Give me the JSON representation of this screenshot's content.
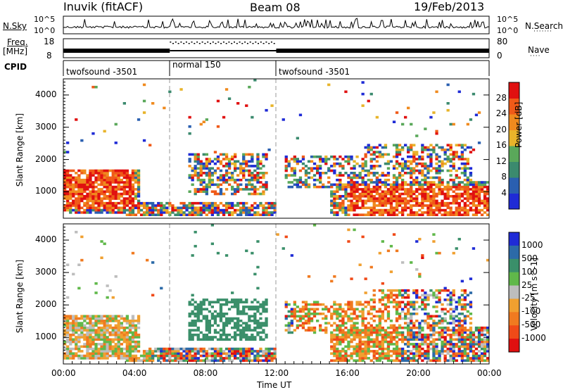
{
  "header": {
    "station": "Inuvik (fitACF)",
    "beam": "Beam 08",
    "date": "19/Feb/2013"
  },
  "strip": {
    "nsky_label": "N.Sky",
    "nsky_top": "10^5",
    "nsky_bottom": "10^0",
    "nsearch_label": "N.Search",
    "nsearch_top": "10^5",
    "nsearch_bottom": "10^0",
    "freq_label": "Freq.",
    "freq_unit": "[MHz]",
    "freq_top": "18",
    "freq_bottom": "8",
    "nave_label": "Nave",
    "nave_top": "80",
    "nave_bottom": "0",
    "cpid_label": "CPID"
  },
  "cpid_segments": [
    {
      "label": "twofsound -3501",
      "start_h": 0,
      "end_h": 6
    },
    {
      "label": "normal 150",
      "start_h": 6,
      "end_h": 12
    },
    {
      "label": "twofsound -3501",
      "start_h": 12,
      "end_h": 24
    }
  ],
  "power": {
    "ylabel": "Slant Range [km]",
    "colorbar_label": "Power [dB]",
    "colorbar_ticks": [
      "4",
      "8",
      "12",
      "16",
      "20",
      "24",
      "28"
    ],
    "colors": [
      "#1f2bd6",
      "#2a5fb0",
      "#3b8a6e",
      "#5aa85a",
      "#e8b42a",
      "#f08a1e",
      "#f05a18",
      "#e01010"
    ]
  },
  "velocity": {
    "ylabel": "Slant Range [km]",
    "colorbar_label": "Velocity [m s^-1]",
    "colorbar_ticks": [
      "1000",
      "500",
      "100",
      "25",
      "-25",
      "-100",
      "-500",
      "-1000"
    ],
    "colors": [
      "#1f2bd6",
      "#2c6aa8",
      "#3a8f6a",
      "#60b84a",
      "#bdbdbd",
      "#f0a030",
      "#f07a20",
      "#f04a18",
      "#e01010"
    ]
  },
  "xaxis": {
    "label": "Time UT",
    "ticks": [
      "00:00",
      "04:00",
      "08:00",
      "12:00",
      "16:00",
      "20:00",
      "00:00"
    ]
  },
  "chart_data": {
    "type": "heatmap",
    "title": "Inuvik (fitACF) Beam 08 19/Feb/2013",
    "xlabel": "Time UT",
    "x_range": [
      "00:00",
      "24:00"
    ],
    "ylabel": "Slant Range [km]",
    "ylim": [
      180,
      4500
    ],
    "y_ticks": [
      1000,
      2000,
      3000,
      4000
    ],
    "panels": [
      {
        "name": "Power [dB]",
        "colorbar_range": [
          0,
          32
        ]
      },
      {
        "name": "Velocity [m s^-1]",
        "colorbar_range": [
          -1000,
          1000
        ]
      }
    ],
    "mode_boundaries_h": [
      6,
      12
    ]
  }
}
